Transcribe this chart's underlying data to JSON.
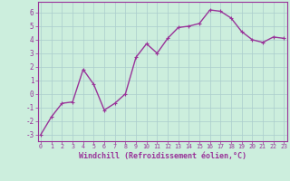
{
  "x": [
    0,
    1,
    2,
    3,
    4,
    5,
    6,
    7,
    8,
    9,
    10,
    11,
    12,
    13,
    14,
    15,
    16,
    17,
    18,
    19,
    20,
    21,
    22,
    23
  ],
  "y": [
    -3.0,
    -1.7,
    -0.7,
    -0.6,
    1.8,
    0.7,
    -1.2,
    -0.7,
    0.0,
    2.7,
    3.7,
    3.0,
    4.1,
    4.9,
    5.0,
    5.2,
    6.2,
    6.1,
    5.6,
    4.6,
    4.0,
    3.8,
    4.2,
    4.1
  ],
  "line_color": "#993399",
  "marker": "+",
  "marker_size": 3,
  "line_width": 1.0,
  "bg_color": "#cceedd",
  "grid_color": "#aacccc",
  "xlabel": "Windchill (Refroidissement éolien,°C)",
  "xlabel_color": "#993399",
  "tick_color": "#993399",
  "ylim": [
    -3.5,
    6.8
  ],
  "yticks": [
    -3,
    -2,
    -1,
    0,
    1,
    2,
    3,
    4,
    5,
    6
  ],
  "xticks": [
    0,
    1,
    2,
    3,
    4,
    5,
    6,
    7,
    8,
    9,
    10,
    11,
    12,
    13,
    14,
    15,
    16,
    17,
    18,
    19,
    20,
    21,
    22,
    23
  ],
  "xlim": [
    -0.3,
    23.3
  ]
}
